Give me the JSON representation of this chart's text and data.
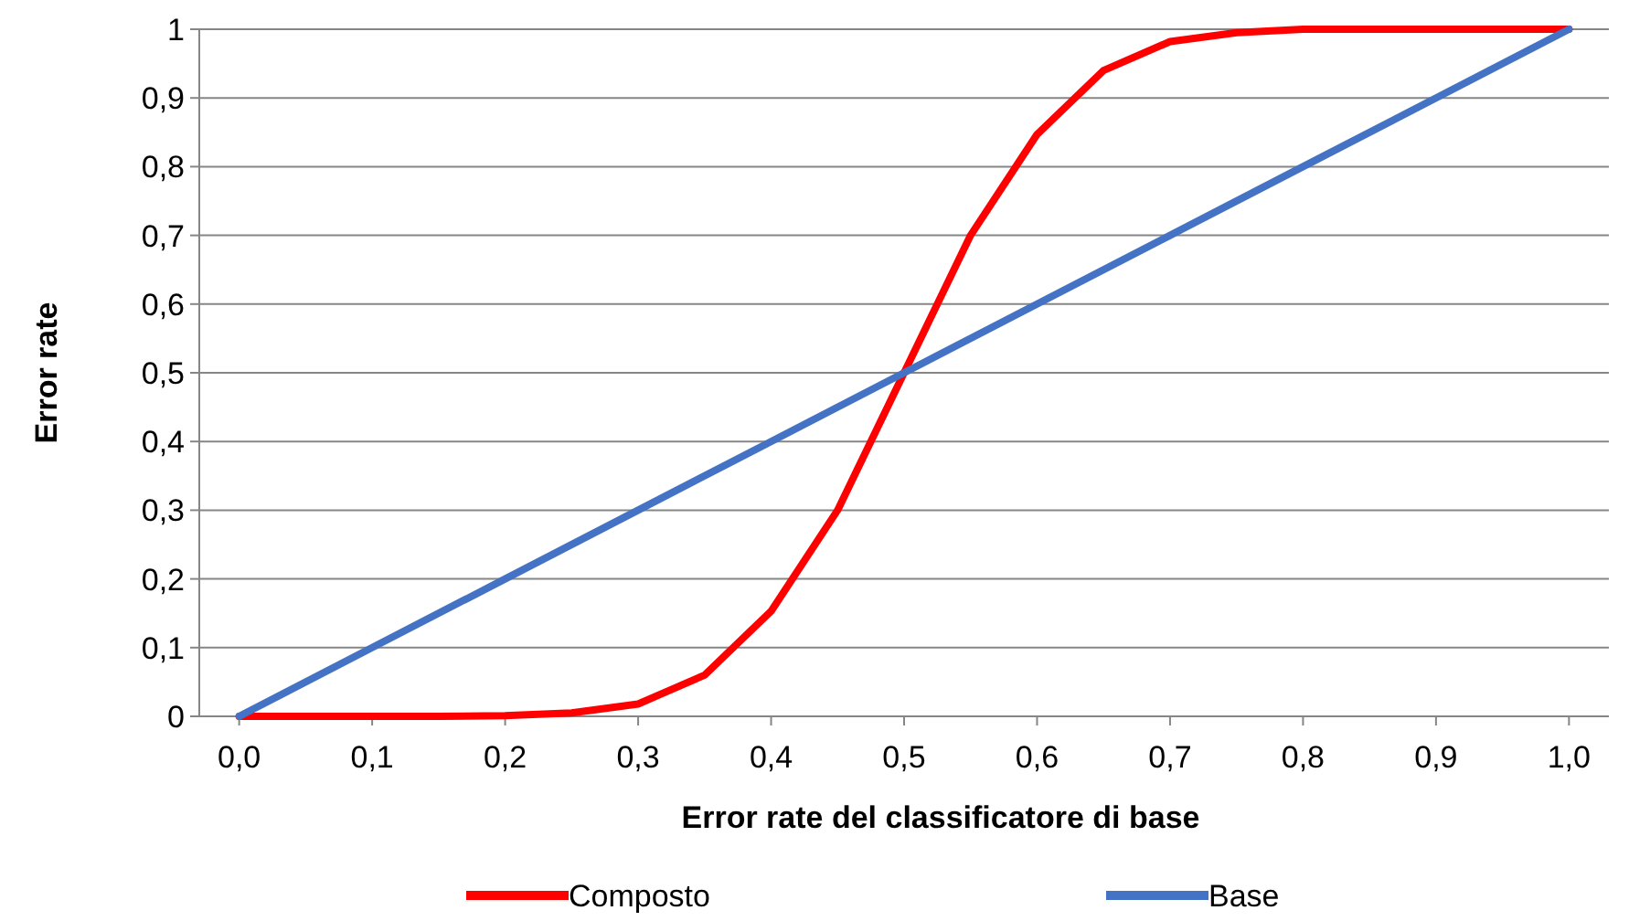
{
  "chart_data": {
    "type": "line",
    "xlabel": "Error rate del classificatore di base",
    "ylabel": "Error rate",
    "xlim": [
      -0.03,
      1.03
    ],
    "ylim": [
      0,
      1
    ],
    "xticks": [
      {
        "value": 0,
        "label": "0,0"
      },
      {
        "value": 0.1,
        "label": "0,1"
      },
      {
        "value": 0.2,
        "label": "0,2"
      },
      {
        "value": 0.3,
        "label": "0,3"
      },
      {
        "value": 0.4,
        "label": "0,4"
      },
      {
        "value": 0.5,
        "label": "0,5"
      },
      {
        "value": 0.6,
        "label": "0,6"
      },
      {
        "value": 0.7,
        "label": "0,7"
      },
      {
        "value": 0.8,
        "label": "0,8"
      },
      {
        "value": 0.9,
        "label": "0,9"
      },
      {
        "value": 1,
        "label": "1,0"
      }
    ],
    "yticks": [
      0,
      {
        "value": 0.1,
        "label": "0,1"
      },
      {
        "value": 0.2,
        "label": "0,2"
      },
      {
        "value": 0.3,
        "label": "0,3"
      },
      {
        "value": 0.4,
        "label": "0,4"
      },
      {
        "value": 0.5,
        "label": "0,5"
      },
      {
        "value": 0.6,
        "label": "0,6"
      },
      {
        "value": 0.7,
        "label": "0,7"
      },
      {
        "value": 0.8,
        "label": "0,8"
      },
      {
        "value": 0.9,
        "label": "0,9"
      },
      1
    ],
    "grid": "y",
    "legend": "bottom",
    "marker": "none",
    "line_style": "solid",
    "series": [
      {
        "name": "Composto",
        "color": "#ff0000",
        "x": [
          0,
          0.05,
          0.1,
          0.15,
          0.2,
          0.25,
          0.3,
          0.35,
          0.4,
          0.45,
          0.5,
          0.55,
          0.6,
          0.65,
          0.7,
          0.75,
          0.8,
          0.85,
          0.9,
          0.95,
          1
        ],
        "values": [
          0,
          0,
          0,
          0,
          0.001,
          0.005,
          0.018,
          0.06,
          0.153,
          0.3,
          0.5,
          0.7,
          0.847,
          0.94,
          0.982,
          0.995,
          1,
          1,
          1,
          1,
          1
        ]
      },
      {
        "name": "Base",
        "color": "#4472c4",
        "x": [
          0,
          0.1,
          0.2,
          0.3,
          0.4,
          0.5,
          0.6,
          0.7,
          0.8,
          0.9,
          1
        ],
        "values": [
          0,
          0.1,
          0.2,
          0.3,
          0.4,
          0.5,
          0.6,
          0.7,
          0.8,
          0.9,
          1
        ]
      }
    ]
  }
}
